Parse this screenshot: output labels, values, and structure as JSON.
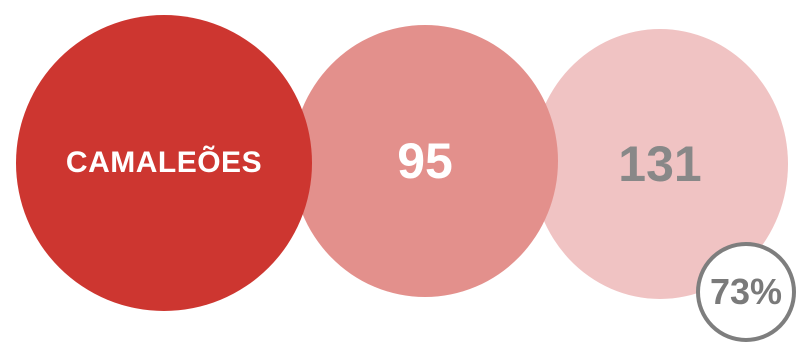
{
  "circles": [
    {
      "text": "CAMALEÕES",
      "fill": "#cd3630",
      "text_color": "#ffffff"
    },
    {
      "text": "95",
      "fill": "#e3908c",
      "text_color": "#ffffff"
    },
    {
      "text": "131",
      "fill": "#f0c3c3",
      "text_color": "#888888"
    }
  ],
  "badge": {
    "text": "73%",
    "border_color": "#7e7e7e",
    "text_color": "#7a7a7a"
  }
}
